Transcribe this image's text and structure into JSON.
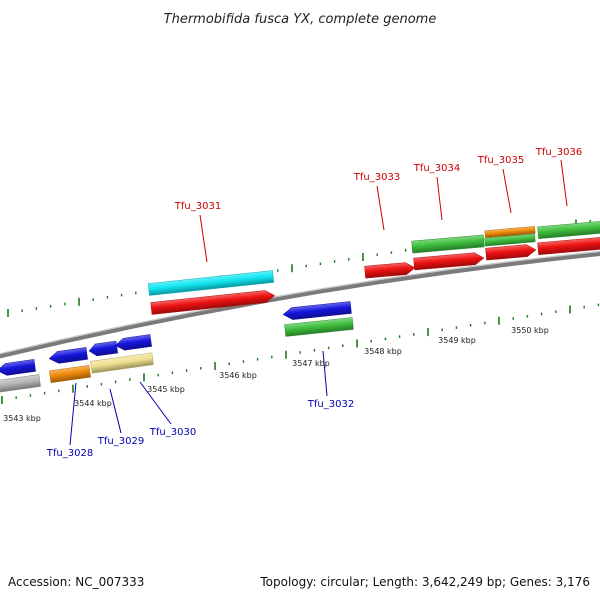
{
  "title": "Thermobifida fusca YX, complete genome",
  "footer": {
    "accession": "Accession: NC_007333",
    "summary": "Topology: circular; Length: 3,642,249 bp; Genes: 3,176"
  },
  "colors": {
    "forward_label": "#cc0000",
    "reverse_label": "#0000b0",
    "backbone": "#7a7a7a",
    "tick": "#1d7a1d",
    "red": "#ee1111",
    "green": "#3dbf3d",
    "blue": "#1515dd",
    "cyan": "#11e6f2",
    "orange": "#f08a0a",
    "khaki": "#efe08e",
    "gray": "#b5b5b5"
  },
  "scale_labels": [
    "3543 kbp",
    "3544 kbp",
    "3545 kbp",
    "3546 kbp",
    "3547 kbp",
    "3548 kbp",
    "3549 kbp",
    "3550 kbp"
  ],
  "genes": [
    {
      "label": "Tfu_3028",
      "strand": "reverse"
    },
    {
      "label": "Tfu_3029",
      "strand": "reverse"
    },
    {
      "label": "Tfu_3030",
      "strand": "reverse"
    },
    {
      "label": "Tfu_3031",
      "strand": "forward"
    },
    {
      "label": "Tfu_3032",
      "strand": "reverse"
    },
    {
      "label": "Tfu_3033",
      "strand": "forward"
    },
    {
      "label": "Tfu_3034",
      "strand": "forward"
    },
    {
      "label": "Tfu_3035",
      "strand": "forward"
    },
    {
      "label": "Tfu_3036",
      "strand": "forward"
    }
  ]
}
